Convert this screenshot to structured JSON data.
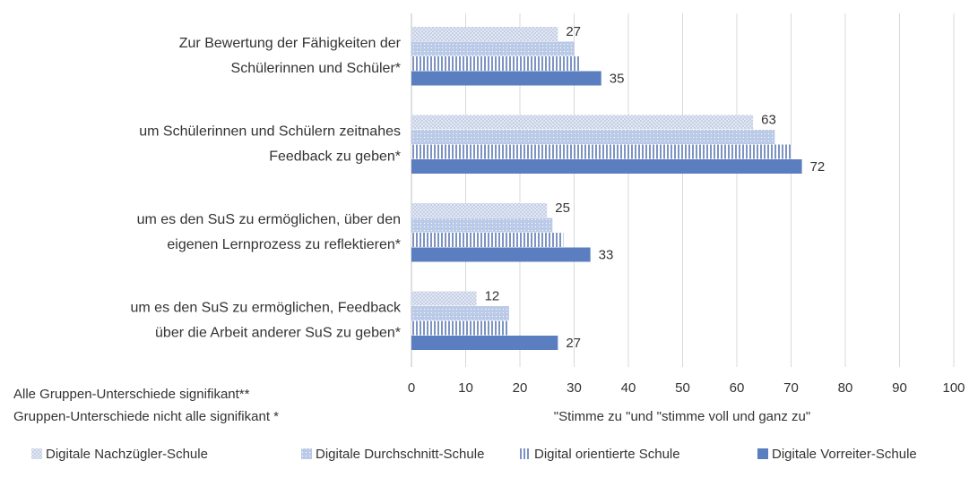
{
  "chart_data": {
    "type": "hbar",
    "categories": [
      [
        "Zur Bewertung der Fähigkeiten der",
        "Schülerinnen und Schüler*"
      ],
      [
        "um Schülerinnen und Schülern zeitnahes",
        "Feedback zu geben*"
      ],
      [
        "um es den SuS zu ermöglichen, über den",
        "eigenen Lernprozess zu reflektieren*"
      ],
      [
        "um es den SuS zu ermöglichen, Feedback",
        "über die Arbeit anderer SuS zu geben*"
      ]
    ],
    "series": [
      {
        "name": "Digitale Nachzügler-Schule",
        "color": "#c5d0e6",
        "pattern": "checker",
        "labels": true,
        "values": [
          27,
          63,
          25,
          12
        ]
      },
      {
        "name": "Digitale Durchschnitt-Schule",
        "color": "#a3b8de",
        "pattern": "dots",
        "labels": false,
        "values": [
          30,
          67,
          26,
          18
        ]
      },
      {
        "name": "Digital orientierte Schule",
        "color": "#7d93c2",
        "pattern": "stripes",
        "labels": false,
        "values": [
          31,
          70,
          28,
          18
        ]
      },
      {
        "name": "Digitale Vorreiter-Schule",
        "color": "#5b7ec0",
        "pattern": "solid",
        "labels": true,
        "values": [
          35,
          72,
          33,
          27
        ]
      }
    ],
    "xlim": [
      0,
      100
    ],
    "xticks": [
      0,
      10,
      20,
      30,
      40,
      50,
      60,
      70,
      80,
      90,
      100
    ],
    "grid": true,
    "xlabel": "\"Stimme zu \"und \"stimme voll und ganz zu\"",
    "annotations": [
      "Alle Gruppen-Unterschiede signifikant**",
      "Gruppen-Unterschiede nicht alle signifikant *"
    ],
    "legend": "bottom"
  }
}
